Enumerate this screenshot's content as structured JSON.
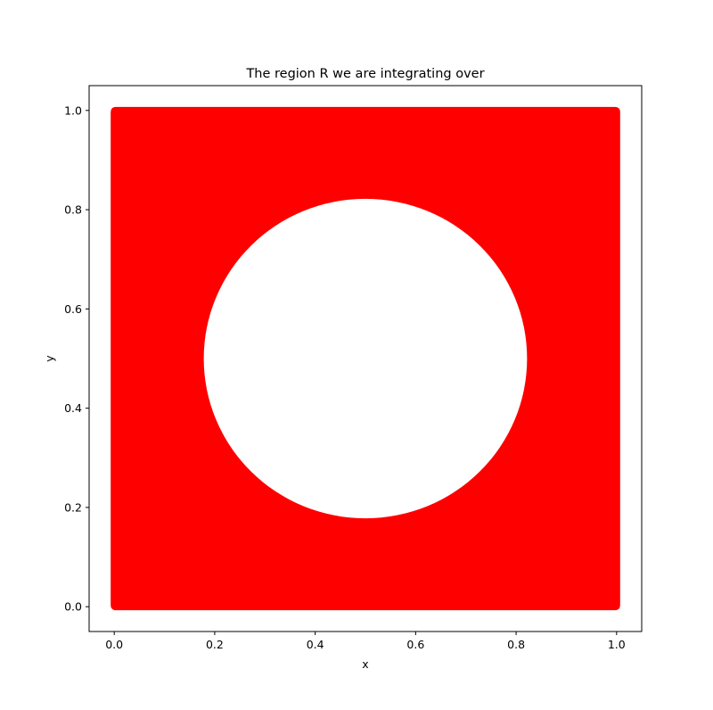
{
  "chart_data": {
    "type": "scatter",
    "title": "The region R we are integrating over",
    "xlabel": "x",
    "ylabel": "y",
    "xlim": [
      -0.05,
      1.05
    ],
    "ylim": [
      -0.05,
      1.05
    ],
    "xticks": [
      0.0,
      0.2,
      0.4,
      0.6,
      0.8,
      1.0
    ],
    "yticks": [
      0.0,
      0.2,
      0.4,
      0.6,
      0.8,
      1.0
    ],
    "xtick_labels": [
      "0.0",
      "0.2",
      "0.4",
      "0.6",
      "0.8",
      "1.0"
    ],
    "ytick_labels": [
      "0.0",
      "0.2",
      "0.4",
      "0.6",
      "0.8",
      "1.0"
    ],
    "grid": false,
    "region": {
      "description": "unit square minus a centered disk",
      "square": {
        "x_range": [
          0,
          1
        ],
        "y_range": [
          0,
          1
        ]
      },
      "hole": {
        "center": [
          0.5,
          0.5
        ],
        "radius": 0.32
      }
    },
    "color": "#ff0000",
    "background": "#ffffff"
  }
}
